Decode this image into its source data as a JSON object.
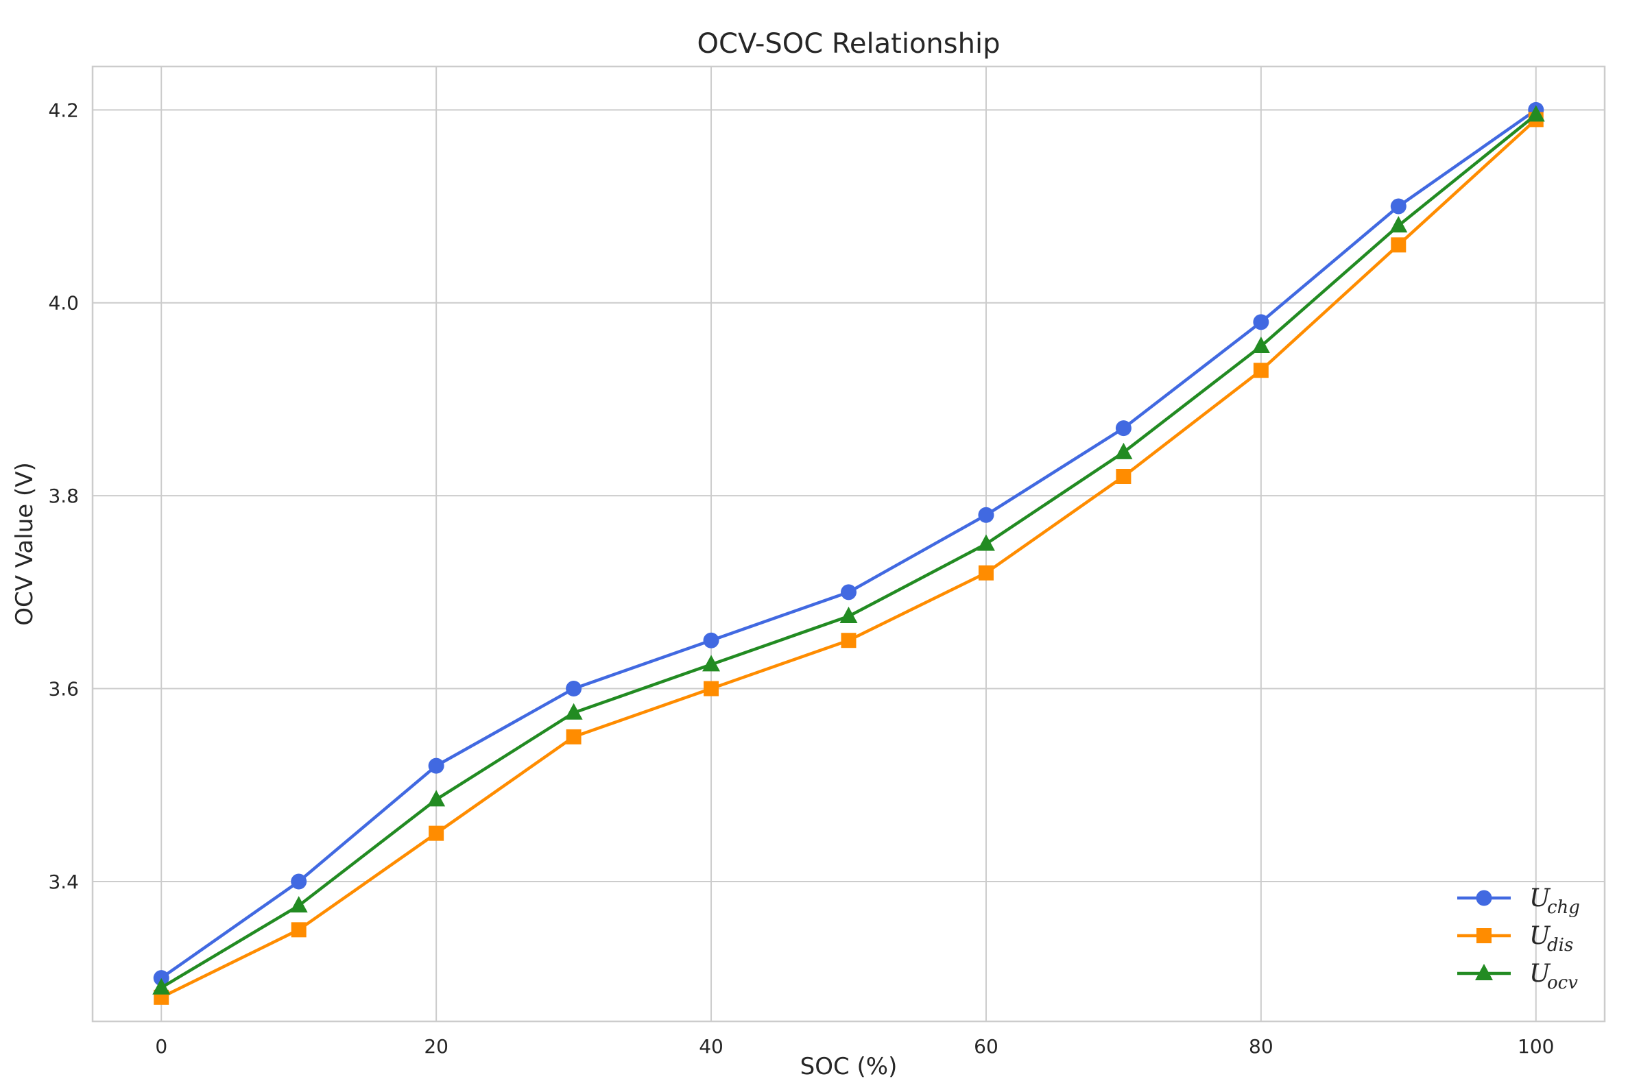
{
  "chart_data": {
    "type": "line",
    "title": "OCV-SOC Relationship",
    "xlabel": "SOC (%)",
    "ylabel": "OCV Value (V)",
    "x": [
      0,
      10,
      20,
      30,
      40,
      50,
      60,
      70,
      80,
      90,
      100
    ],
    "xlim": [
      -5,
      105
    ],
    "ylim": [
      3.255,
      4.245
    ],
    "xticks": [
      0,
      20,
      40,
      60,
      80,
      100
    ],
    "xtick_labels": [
      "0",
      "20",
      "40",
      "60",
      "80",
      "100"
    ],
    "yticks": [
      3.4,
      3.6,
      3.8,
      4.0,
      4.2
    ],
    "ytick_labels": [
      "3.4",
      "3.6",
      "3.8",
      "4.0",
      "4.2"
    ],
    "grid": true,
    "legend_position": "bottom-right",
    "series": [
      {
        "name": "U_chg",
        "label_main": "U",
        "label_sub": "chg",
        "color": "#4169e1",
        "marker": "circle",
        "values": [
          3.3,
          3.4,
          3.52,
          3.6,
          3.65,
          3.7,
          3.78,
          3.87,
          3.98,
          4.1,
          4.2
        ]
      },
      {
        "name": "U_dis",
        "label_main": "U",
        "label_sub": "dis",
        "color": "#ff8c00",
        "marker": "square",
        "values": [
          3.28,
          3.35,
          3.45,
          3.55,
          3.6,
          3.65,
          3.72,
          3.82,
          3.93,
          4.06,
          4.19
        ]
      },
      {
        "name": "U_ocv",
        "label_main": "U",
        "label_sub": "ocv",
        "color": "#228b22",
        "marker": "triangle",
        "values": [
          3.29,
          3.375,
          3.485,
          3.575,
          3.625,
          3.675,
          3.75,
          3.845,
          3.955,
          4.08,
          4.195
        ]
      }
    ]
  }
}
